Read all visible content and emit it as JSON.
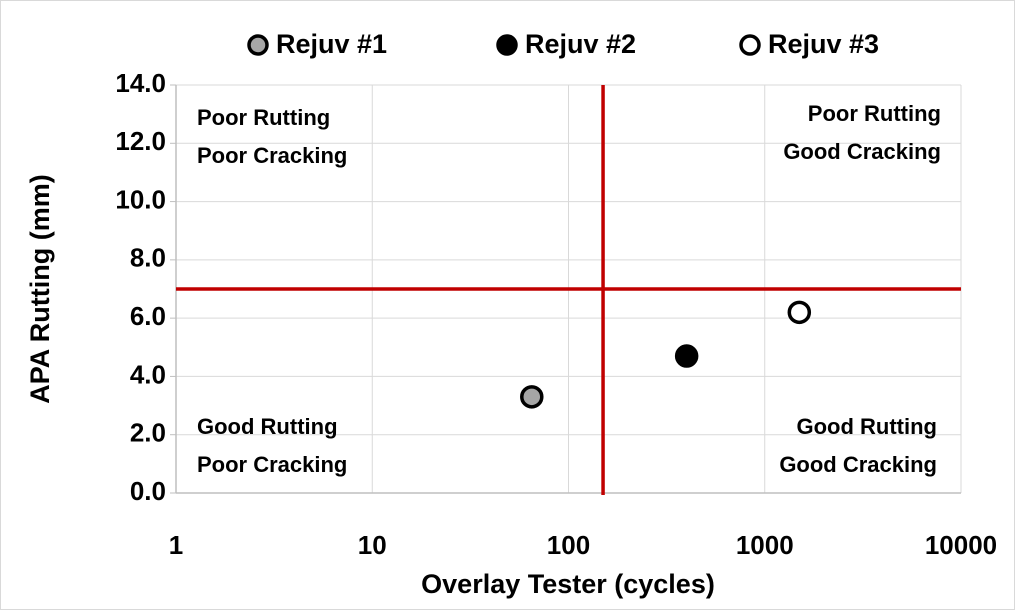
{
  "chart_data": {
    "type": "scatter",
    "x_label": "Overlay Tester (cycles)",
    "y_label": "APA Rutting (mm)",
    "x_log": true,
    "grid": true,
    "xlim": [
      1,
      10000
    ],
    "xticks": [
      1,
      10,
      100,
      1000,
      10000
    ],
    "ylim": [
      0,
      14
    ],
    "yticks": [
      {
        "value": 0,
        "label": "0.0"
      },
      {
        "value": 2,
        "label": "2.0"
      },
      {
        "value": 4,
        "label": "4.0"
      },
      {
        "value": 6,
        "label": "6.0"
      },
      {
        "value": 8,
        "label": "8.0"
      },
      {
        "value": 10,
        "label": "10.0"
      },
      {
        "value": 12,
        "label": "12.0"
      },
      {
        "value": 14,
        "label": "14.0"
      }
    ],
    "legend": "top",
    "series": [
      {
        "name": "Rejuv #1",
        "color": "#a6a6a6",
        "x": [
          65
        ],
        "values": [
          3.3
        ]
      },
      {
        "name": "Rejuv #2",
        "color": "#000000",
        "x": [
          400
        ],
        "values": [
          4.7
        ]
      },
      {
        "name": "Rejuv #3",
        "color": "#ffffff",
        "x": [
          1500
        ],
        "values": [
          6.2
        ]
      }
    ],
    "reference_lines": {
      "x": 150,
      "y": 7,
      "color": "#c00000"
    },
    "annotations": [
      {
        "lines": [
          "Poor Rutting",
          "Poor Cracking"
        ]
      },
      {
        "lines": [
          "Poor Rutting",
          "Good Cracking"
        ]
      },
      {
        "lines": [
          "Good Rutting",
          "Poor Cracking"
        ]
      },
      {
        "lines": [
          "Good Rutting",
          "Good Cracking"
        ]
      }
    ]
  }
}
